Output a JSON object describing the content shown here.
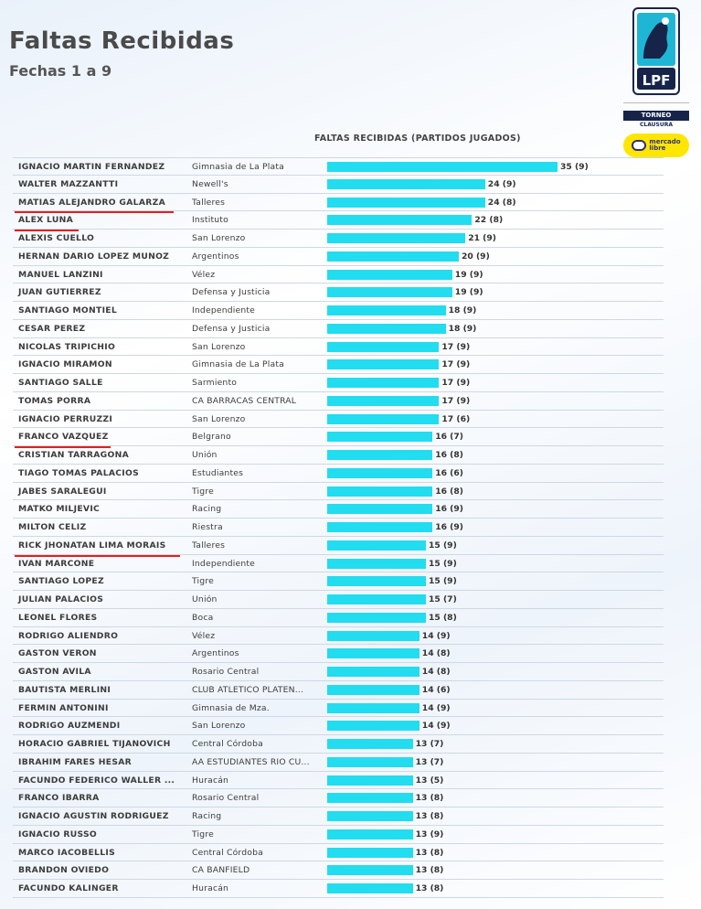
{
  "page": {
    "title": "Faltas Recibidas",
    "subtitle": "Fechas 1 a 9",
    "logo_text": "LPF",
    "torneo_label": "TORNEO",
    "clausura_label": "CLAUSURA",
    "sponsor_label_1": "mercado",
    "sponsor_label_2": "libre"
  },
  "chart_data": {
    "type": "bar",
    "orientation": "horizontal",
    "title": "FALTAS RECIBIDAS (PARTIDOS JUGADOS)",
    "xlim": [
      0,
      35
    ],
    "accent_color": "#22dcf0",
    "rows": [
      {
        "name": "IGNACIO MARTIN FERNANDEZ",
        "club": "Gimnasia de La Plata",
        "value": 35,
        "matches": 9,
        "label": "35 (9)",
        "underlined": false
      },
      {
        "name": "WALTER MAZZANTTI",
        "club": "Newell's",
        "value": 24,
        "matches": 9,
        "label": "24 (9)",
        "underlined": false
      },
      {
        "name": "MATIAS ALEJANDRO GALARZA",
        "club": "Talleres",
        "value": 24,
        "matches": 8,
        "label": "24 (8)",
        "underlined": true
      },
      {
        "name": "ALEX LUNA",
        "club": "Instituto",
        "value": 22,
        "matches": 8,
        "label": "22 (8)",
        "underlined": true
      },
      {
        "name": "ALEXIS CUELLO",
        "club": "San Lorenzo",
        "value": 21,
        "matches": 9,
        "label": "21 (9)",
        "underlined": false
      },
      {
        "name": "HERNAN DARIO LOPEZ MUNOZ",
        "club": "Argentinos",
        "value": 20,
        "matches": 9,
        "label": "20 (9)",
        "underlined": false
      },
      {
        "name": "MANUEL LANZINI",
        "club": "Vélez",
        "value": 19,
        "matches": 9,
        "label": "19 (9)",
        "underlined": false
      },
      {
        "name": "JUAN GUTIERREZ",
        "club": "Defensa y Justicia",
        "value": 19,
        "matches": 9,
        "label": "19 (9)",
        "underlined": false
      },
      {
        "name": "SANTIAGO MONTIEL",
        "club": "Independiente",
        "value": 18,
        "matches": 9,
        "label": "18 (9)",
        "underlined": false
      },
      {
        "name": "CESAR PEREZ",
        "club": "Defensa y Justicia",
        "value": 18,
        "matches": 9,
        "label": "18 (9)",
        "underlined": false
      },
      {
        "name": "NICOLAS TRIPICHIO",
        "club": "San Lorenzo",
        "value": 17,
        "matches": 9,
        "label": "17 (9)",
        "underlined": false
      },
      {
        "name": "IGNACIO MIRAMON",
        "club": "Gimnasia de La Plata",
        "value": 17,
        "matches": 9,
        "label": "17 (9)",
        "underlined": false
      },
      {
        "name": "SANTIAGO SALLE",
        "club": "Sarmiento",
        "value": 17,
        "matches": 9,
        "label": "17 (9)",
        "underlined": false
      },
      {
        "name": "TOMAS PORRA",
        "club": "CA BARRACAS CENTRAL",
        "value": 17,
        "matches": 9,
        "label": "17 (9)",
        "underlined": false
      },
      {
        "name": "IGNACIO PERRUZZI",
        "club": "San Lorenzo",
        "value": 17,
        "matches": 6,
        "label": "17 (6)",
        "underlined": false
      },
      {
        "name": "FRANCO VAZQUEZ",
        "club": "Belgrano",
        "value": 16,
        "matches": 7,
        "label": "16 (7)",
        "underlined": true
      },
      {
        "name": "CRISTIAN TARRAGONA",
        "club": "Unión",
        "value": 16,
        "matches": 8,
        "label": "16 (8)",
        "underlined": false
      },
      {
        "name": "TIAGO TOMAS PALACIOS",
        "club": "Estudiantes",
        "value": 16,
        "matches": 6,
        "label": "16 (6)",
        "underlined": false
      },
      {
        "name": "JABES SARALEGUI",
        "club": "Tigre",
        "value": 16,
        "matches": 8,
        "label": "16 (8)",
        "underlined": false
      },
      {
        "name": "MATKO MILJEVIC",
        "club": "Racing",
        "value": 16,
        "matches": 9,
        "label": "16 (9)",
        "underlined": false
      },
      {
        "name": "MILTON CELIZ",
        "club": "Riestra",
        "value": 16,
        "matches": 9,
        "label": "16 (9)",
        "underlined": false
      },
      {
        "name": "RICK JHONATAN LIMA MORAIS",
        "club": "Talleres",
        "value": 15,
        "matches": 9,
        "label": "15 (9)",
        "underlined": true
      },
      {
        "name": "IVAN MARCONE",
        "club": "Independiente",
        "value": 15,
        "matches": 9,
        "label": "15 (9)",
        "underlined": false
      },
      {
        "name": "SANTIAGO LOPEZ",
        "club": "Tigre",
        "value": 15,
        "matches": 9,
        "label": "15 (9)",
        "underlined": false
      },
      {
        "name": "JULIAN PALACIOS",
        "club": "Unión",
        "value": 15,
        "matches": 7,
        "label": "15 (7)",
        "underlined": false
      },
      {
        "name": "LEONEL FLORES",
        "club": "Boca",
        "value": 15,
        "matches": 8,
        "label": "15 (8)",
        "underlined": false
      },
      {
        "name": "RODRIGO ALIENDRO",
        "club": "Vélez",
        "value": 14,
        "matches": 9,
        "label": "14 (9)",
        "underlined": false
      },
      {
        "name": "GASTON VERON",
        "club": "Argentinos",
        "value": 14,
        "matches": 8,
        "label": "14 (8)",
        "underlined": false
      },
      {
        "name": "GASTON AVILA",
        "club": "Rosario Central",
        "value": 14,
        "matches": 8,
        "label": "14 (8)",
        "underlined": false
      },
      {
        "name": "BAUTISTA MERLINI",
        "club": "CLUB ATLETICO PLATEN...",
        "value": 14,
        "matches": 6,
        "label": "14 (6)",
        "underlined": false
      },
      {
        "name": "FERMIN ANTONINI",
        "club": "Gimnasia de Mza.",
        "value": 14,
        "matches": 9,
        "label": "14 (9)",
        "underlined": false
      },
      {
        "name": "RODRIGO AUZMENDI",
        "club": "San Lorenzo",
        "value": 14,
        "matches": 9,
        "label": "14 (9)",
        "underlined": false
      },
      {
        "name": "HORACIO GABRIEL TIJANOVICH",
        "club": "Central Córdoba",
        "value": 13,
        "matches": 7,
        "label": "13 (7)",
        "underlined": false
      },
      {
        "name": "IBRAHIM FARES HESAR",
        "club": "AA ESTUDIANTES RIO CU...",
        "value": 13,
        "matches": 7,
        "label": "13 (7)",
        "underlined": false
      },
      {
        "name": "FACUNDO FEDERICO WALLER ...",
        "club": "Huracán",
        "value": 13,
        "matches": 5,
        "label": "13 (5)",
        "underlined": false
      },
      {
        "name": "FRANCO IBARRA",
        "club": "Rosario Central",
        "value": 13,
        "matches": 8,
        "label": "13 (8)",
        "underlined": false
      },
      {
        "name": "IGNACIO AGUSTIN RODRIGUEZ",
        "club": "Racing",
        "value": 13,
        "matches": 8,
        "label": "13 (8)",
        "underlined": false
      },
      {
        "name": "IGNACIO RUSSO",
        "club": "Tigre",
        "value": 13,
        "matches": 9,
        "label": "13 (9)",
        "underlined": false
      },
      {
        "name": "MARCO IACOBELLIS",
        "club": "Central Córdoba",
        "value": 13,
        "matches": 8,
        "label": "13 (8)",
        "underlined": false
      },
      {
        "name": "BRANDON OVIEDO",
        "club": "CA BANFIELD",
        "value": 13,
        "matches": 8,
        "label": "13 (8)",
        "underlined": false
      },
      {
        "name": "FACUNDO KALINGER",
        "club": "Huracán",
        "value": 13,
        "matches": 8,
        "label": "13 (8)",
        "underlined": false
      }
    ]
  }
}
